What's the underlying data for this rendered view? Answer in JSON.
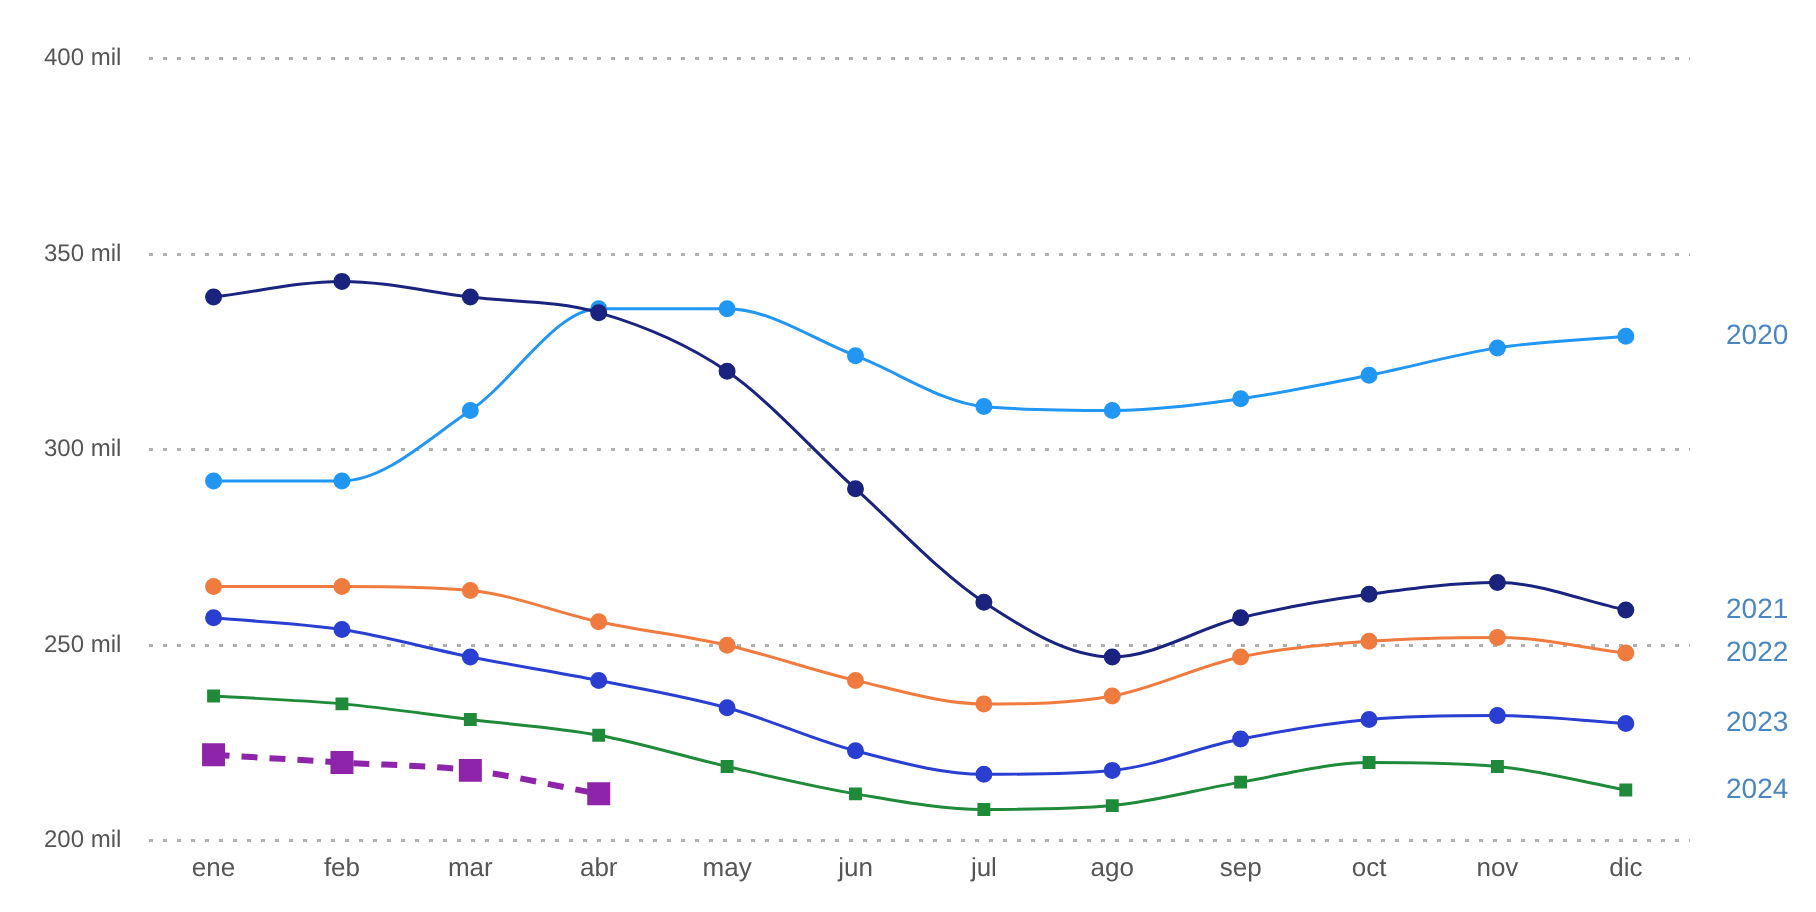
{
  "chart_data": {
    "type": "line",
    "categories": [
      "ene",
      "feb",
      "mar",
      "abr",
      "may",
      "jun",
      "jul",
      "ago",
      "sep",
      "oct",
      "nov",
      "dic"
    ],
    "series": [
      {
        "name": "2020",
        "color": "#2196f3",
        "marker": "circle",
        "values": [
          292,
          292,
          310,
          336,
          336,
          324,
          311,
          310,
          313,
          319,
          326,
          329
        ]
      },
      {
        "name": "2021",
        "color": "#1a237e",
        "marker": "circle",
        "values": [
          339,
          343,
          339,
          335,
          320,
          290,
          261,
          247,
          257,
          263,
          266,
          259
        ]
      },
      {
        "name": "2022",
        "color": "#f07b3f",
        "marker": "circle",
        "values": [
          265,
          265,
          264,
          256,
          250,
          241,
          235,
          237,
          247,
          251,
          252,
          248
        ]
      },
      {
        "name": "2023",
        "color": "#2a3fd1",
        "marker": "circle",
        "values": [
          257,
          254,
          247,
          241,
          234,
          223,
          217,
          218,
          226,
          231,
          232,
          230
        ]
      },
      {
        "name": "2024",
        "color": "#1f8a3a",
        "marker": "square",
        "values": [
          237,
          235,
          231,
          227,
          219,
          212,
          208,
          209,
          215,
          220,
          219,
          213
        ]
      },
      {
        "color": "#8e24aa",
        "marker": "square",
        "line_style": "dashed",
        "values": [
          222,
          220,
          218,
          212,
          null,
          null,
          null,
          null,
          null,
          null,
          null,
          null
        ]
      }
    ],
    "ylim": [
      200,
      400
    ],
    "yticks": [
      {
        "value": 200,
        "label": "200 mil"
      },
      {
        "value": 250,
        "label": "250 mil"
      },
      {
        "value": 300,
        "label": "300 mil"
      },
      {
        "value": 350,
        "label": "350 mil"
      },
      {
        "value": 400,
        "label": "400 mil"
      }
    ],
    "grid": "y",
    "legend": false
  }
}
